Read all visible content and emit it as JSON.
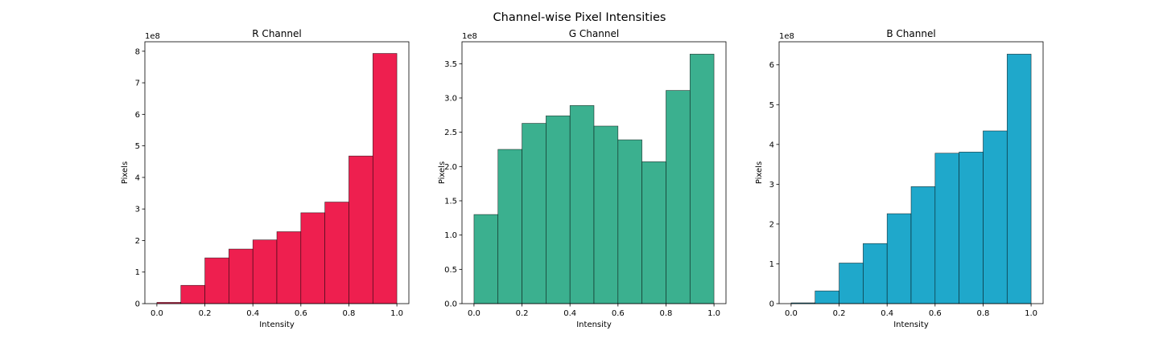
{
  "figure": {
    "title": "Channel-wise Pixel Intensities"
  },
  "chart_data": [
    {
      "type": "bar",
      "title": "R Channel",
      "xlabel": "Intensity",
      "ylabel": "Pixels",
      "y_offset_label": "1e8",
      "color": "#ee1f4f",
      "edge_color": "#000000",
      "bin_edges": [
        0.0,
        0.1,
        0.2,
        0.3,
        0.4,
        0.5,
        0.6,
        0.7,
        0.8,
        0.9,
        1.0
      ],
      "values": [
        4000000,
        58000000,
        145000000,
        173000000,
        202000000,
        228000000,
        288000000,
        322000000,
        468000000,
        793000000
      ],
      "xlim": [
        -0.05,
        1.05
      ],
      "ylim": [
        0,
        830000000
      ],
      "xticks": [
        0.0,
        0.2,
        0.4,
        0.6,
        0.8,
        1.0
      ],
      "xtick_labels": [
        "0.0",
        "0.2",
        "0.4",
        "0.6",
        "0.8",
        "1.0"
      ],
      "yticks": [
        0,
        100000000,
        200000000,
        300000000,
        400000000,
        500000000,
        600000000,
        700000000,
        800000000
      ],
      "ytick_labels": [
        "0",
        "1",
        "2",
        "3",
        "4",
        "5",
        "6",
        "7",
        "8"
      ],
      "grid": false
    },
    {
      "type": "bar",
      "title": "G Channel",
      "xlabel": "Intensity",
      "ylabel": "Pixels",
      "y_offset_label": "1e8",
      "color": "#3bb08f",
      "edge_color": "#000000",
      "bin_edges": [
        0.0,
        0.1,
        0.2,
        0.3,
        0.4,
        0.5,
        0.6,
        0.7,
        0.8,
        0.9,
        1.0
      ],
      "values": [
        130000000,
        225000000,
        263000000,
        274000000,
        289000000,
        259000000,
        239000000,
        207000000,
        311000000,
        364000000
      ],
      "xlim": [
        -0.05,
        1.05
      ],
      "ylim": [
        0,
        382000000
      ],
      "xticks": [
        0.0,
        0.2,
        0.4,
        0.6,
        0.8,
        1.0
      ],
      "xtick_labels": [
        "0.0",
        "0.2",
        "0.4",
        "0.6",
        "0.8",
        "1.0"
      ],
      "yticks": [
        0,
        50000000,
        100000000,
        150000000,
        200000000,
        250000000,
        300000000,
        350000000
      ],
      "ytick_labels": [
        "0.0",
        "0.5",
        "1.0",
        "1.5",
        "2.0",
        "2.5",
        "3.0",
        "3.5"
      ],
      "grid": false
    },
    {
      "type": "bar",
      "title": "B Channel",
      "xlabel": "Intensity",
      "ylabel": "Pixels",
      "y_offset_label": "1e8",
      "color": "#1fa8cb",
      "edge_color": "#000000",
      "bin_edges": [
        0.0,
        0.1,
        0.2,
        0.3,
        0.4,
        0.5,
        0.6,
        0.7,
        0.8,
        0.9,
        1.0
      ],
      "values": [
        2000000,
        32000000,
        102000000,
        151000000,
        226000000,
        294000000,
        378000000,
        381000000,
        434000000,
        627000000
      ],
      "xlim": [
        -0.05,
        1.05
      ],
      "ylim": [
        0,
        658000000
      ],
      "xticks": [
        0.0,
        0.2,
        0.4,
        0.6,
        0.8,
        1.0
      ],
      "xtick_labels": [
        "0.0",
        "0.2",
        "0.4",
        "0.6",
        "0.8",
        "1.0"
      ],
      "yticks": [
        0,
        100000000,
        200000000,
        300000000,
        400000000,
        500000000,
        600000000
      ],
      "ytick_labels": [
        "0",
        "1",
        "2",
        "3",
        "4",
        "5",
        "6"
      ],
      "grid": false
    }
  ]
}
